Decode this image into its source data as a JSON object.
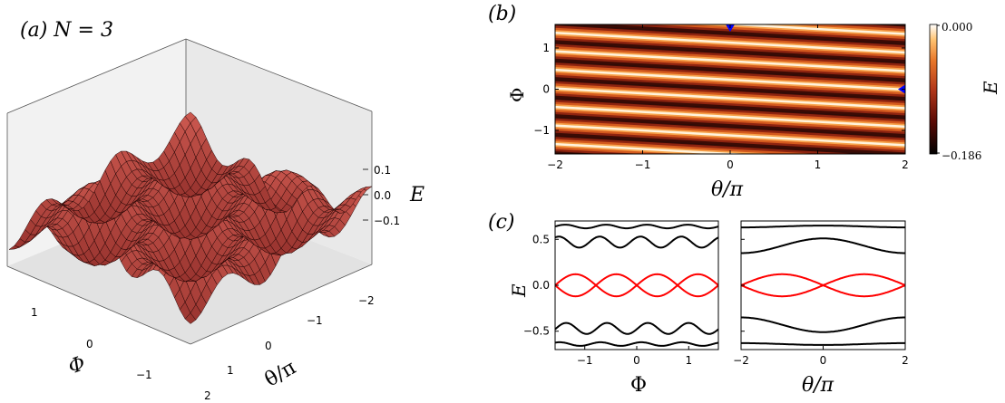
{
  "chart_data": [
    {
      "panel": "(a)",
      "type": "surface3d",
      "title": "(a) N = 3",
      "xlabel": "Φ",
      "ylabel": "θ/π",
      "zlabel": "E",
      "x_ticks": [
        "1",
        "0",
        "−1"
      ],
      "y_ticks": [
        "−2",
        "−1",
        "0",
        "1",
        "2"
      ],
      "z_ticks": [
        "0.1",
        "0.0",
        "−0.1"
      ],
      "xlim": [
        -1.5708,
        1.5708
      ],
      "ylim": [
        -2,
        2
      ],
      "zlim": [
        -0.186,
        0.186
      ],
      "colors": {
        "surface": "#c25a55",
        "mesh": "#1a0000"
      }
    },
    {
      "panel": "(b)",
      "type": "heatmap",
      "title": "(b)",
      "xlabel": "θ/π",
      "ylabel": "Φ",
      "x_ticks": [
        "−2",
        "−1",
        "0",
        "1",
        "2"
      ],
      "y_ticks": [
        "1",
        "0",
        "−1"
      ],
      "xlim": [
        -2,
        2
      ],
      "ylim": [
        -1.5708,
        1.5708
      ],
      "colorbar": {
        "label": "E",
        "min": -0.186,
        "max": 0.0,
        "min_label": "−0.186",
        "max_label": "0.000",
        "colormap": "gist_heat"
      },
      "markers": [
        {
          "shape": "triangle-down",
          "color": "#0000ff",
          "theta_over_pi": 0.0,
          "phi": 1.5708
        },
        {
          "shape": "triangle-left",
          "color": "#0000ff",
          "theta_over_pi": 2.0,
          "phi": 0.0
        }
      ]
    },
    {
      "panel": "(c)",
      "type": "line",
      "title": "(c)",
      "ylabel": "E",
      "subplots": [
        {
          "xlabel": "Φ",
          "x_ticks": [
            "−1",
            "0",
            "1"
          ],
          "xlim": [
            -1.5708,
            1.5708
          ],
          "y_ticks": [
            "0.5",
            "0.0",
            "−0.5"
          ],
          "ylim": [
            -0.7,
            0.7
          ],
          "series": [
            {
              "color": "#000000",
              "band": "upper",
              "center": 0.64,
              "amp": 0.02
            },
            {
              "color": "#000000",
              "band": "upper",
              "center": 0.47,
              "amp": 0.06
            },
            {
              "color": "#ff0000",
              "band": "middle",
              "center": 0.0,
              "amp": 0.12
            },
            {
              "color": "#000000",
              "band": "lower",
              "center": -0.47,
              "amp": 0.06
            },
            {
              "color": "#000000",
              "band": "lower",
              "center": -0.64,
              "amp": 0.02
            }
          ]
        },
        {
          "xlabel": "θ/π",
          "x_ticks": [
            "−2",
            "0",
            "2"
          ],
          "xlim": [
            -2,
            2
          ],
          "ylim": [
            -0.7,
            0.7
          ],
          "series": [
            {
              "color": "#000000",
              "band": "upper",
              "center": 0.64,
              "amp": 0.01
            },
            {
              "color": "#000000",
              "band": "upper",
              "center": 0.43,
              "amp": 0.08
            },
            {
              "color": "#ff0000",
              "band": "middle",
              "center": 0.0,
              "amp": 0.12
            },
            {
              "color": "#000000",
              "band": "lower",
              "center": -0.43,
              "amp": 0.08
            },
            {
              "color": "#000000",
              "band": "lower",
              "center": -0.64,
              "amp": 0.01
            }
          ]
        }
      ]
    }
  ]
}
